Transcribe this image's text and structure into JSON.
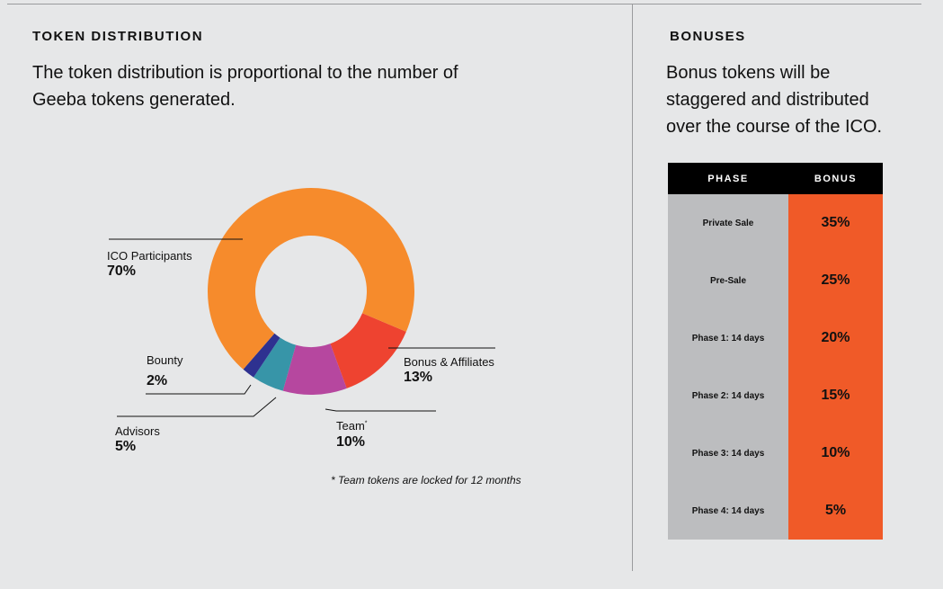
{
  "left": {
    "heading": "TOKEN DISTRIBUTION",
    "text": "The token distribution is proportional to the number of Geeba tokens generated.",
    "footnote": "* Team tokens are locked for 12 months"
  },
  "right": {
    "heading": "BONUSES",
    "text": "Bonus tokens will be staggered and distributed over the course of the ICO.",
    "table": {
      "headers": [
        "PHASE",
        "BONUS"
      ],
      "rows": [
        {
          "phase": "Private Sale",
          "bonus": "35%"
        },
        {
          "phase": "Pre-Sale",
          "bonus": "25%"
        },
        {
          "phase": "Phase 1: 14 days",
          "bonus": "20%"
        },
        {
          "phase": "Phase 2: 14 days",
          "bonus": "15%"
        },
        {
          "phase": "Phase 3: 14 days",
          "bonus": "10%"
        },
        {
          "phase": "Phase 4: 14 days",
          "bonus": "5%"
        }
      ]
    }
  },
  "chart_data": {
    "type": "pie",
    "donut": true,
    "title": "TOKEN DISTRIBUTION",
    "slices": [
      {
        "label": "ICO Participants",
        "value": 70,
        "pct": "70%",
        "color": "#f68b2c"
      },
      {
        "label": "Bonus & Affiliates",
        "value": 13,
        "pct": "13%",
        "color": "#ee4330"
      },
      {
        "label": "Team",
        "value": 10,
        "pct": "10%",
        "color": "#b6479f",
        "sup": "*"
      },
      {
        "label": "Advisors",
        "value": 5,
        "pct": "5%",
        "color": "#3795a8"
      },
      {
        "label": "Bounty",
        "value": 2,
        "pct": "2%",
        "color": "#2e3190"
      }
    ]
  }
}
